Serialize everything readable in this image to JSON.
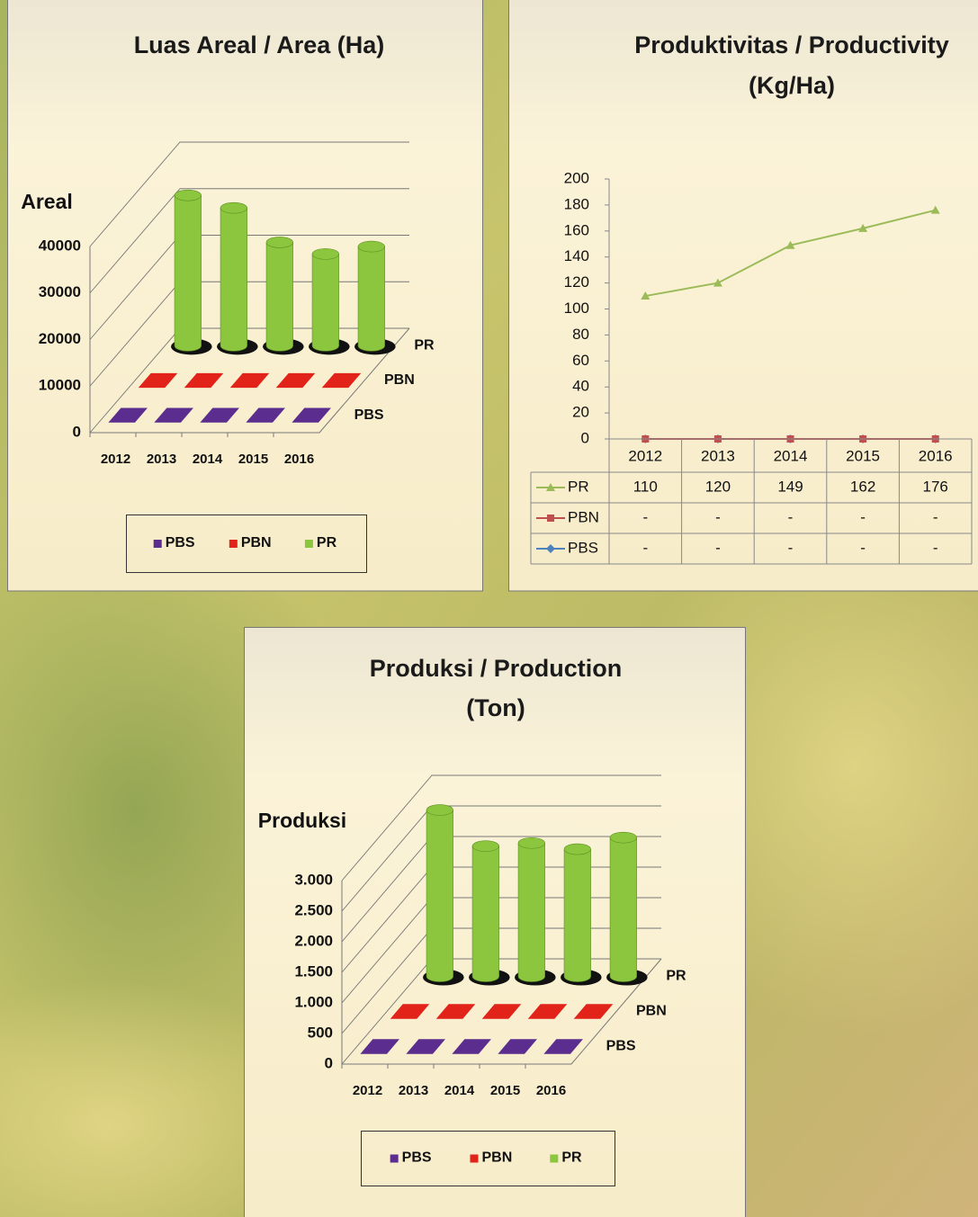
{
  "chart_data": [
    {
      "type": "bar",
      "title": [
        "Luas Areal / Area (Ha)"
      ],
      "y_label": "Areal",
      "categories": [
        "2012",
        "2013",
        "2014",
        "2015",
        "2016"
      ],
      "series": [
        {
          "name": "PBS",
          "color": "#5b2d8e",
          "values": [
            0,
            0,
            0,
            0,
            0
          ]
        },
        {
          "name": "PBN",
          "color": "#e2231a",
          "values": [
            0,
            0,
            0,
            0,
            0
          ]
        },
        {
          "name": "PR",
          "color": "#8cc63e",
          "values": [
            32300,
            29600,
            22200,
            19700,
            21300
          ]
        }
      ],
      "ylim": [
        0,
        40000
      ],
      "yticks": [
        0,
        10000,
        20000,
        30000,
        40000
      ],
      "legend": "bottom"
    },
    {
      "type": "line",
      "title": [
        "Produktivitas / Productivity",
        "(Kg/Ha)"
      ],
      "categories": [
        "2012",
        "2013",
        "2014",
        "2015",
        "2016"
      ],
      "series": [
        {
          "name": "PR",
          "color": "#9bbb59",
          "marker": "triangle",
          "values": [
            110,
            120,
            149,
            162,
            176
          ]
        },
        {
          "name": "PBN",
          "color": "#c0504d",
          "marker": "square",
          "values": [
            0,
            0,
            0,
            0,
            0
          ],
          "value_labels": [
            "-",
            "-",
            "-",
            "-",
            "-"
          ]
        },
        {
          "name": "PBS",
          "color": "#4f81bd",
          "marker": "diamond",
          "values": [
            0,
            0,
            0,
            0,
            0
          ],
          "value_labels": [
            "-",
            "-",
            "-",
            "-",
            "-"
          ]
        }
      ],
      "ylim": [
        0,
        200
      ],
      "yticks": [
        0,
        20,
        40,
        60,
        80,
        100,
        120,
        140,
        160,
        180,
        200
      ],
      "data_table": true
    },
    {
      "type": "bar",
      "title": [
        "Produksi / Production",
        "(Ton)"
      ],
      "y_label": "Produksi",
      "categories": [
        "2012",
        "2013",
        "2014",
        "2015",
        "2016"
      ],
      "series": [
        {
          "name": "PBS",
          "color": "#5b2d8e",
          "values": [
            0,
            0,
            0,
            0,
            0
          ]
        },
        {
          "name": "PBN",
          "color": "#e2231a",
          "values": [
            0,
            0,
            0,
            0,
            0
          ]
        },
        {
          "name": "PR",
          "color": "#8cc63e",
          "values": [
            2720,
            2130,
            2180,
            2080,
            2270
          ]
        }
      ],
      "ylim": [
        0,
        3000
      ],
      "yticks": [
        0,
        500,
        {
          "value": 1000,
          "label": "1.000"
        },
        {
          "value": 1500,
          "label": "1.500"
        },
        {
          "value": 2000,
          "label": "2.000"
        },
        {
          "value": 2500,
          "label": "2.500"
        },
        {
          "value": 3000,
          "label": "3.000"
        }
      ],
      "legend": "bottom"
    }
  ]
}
